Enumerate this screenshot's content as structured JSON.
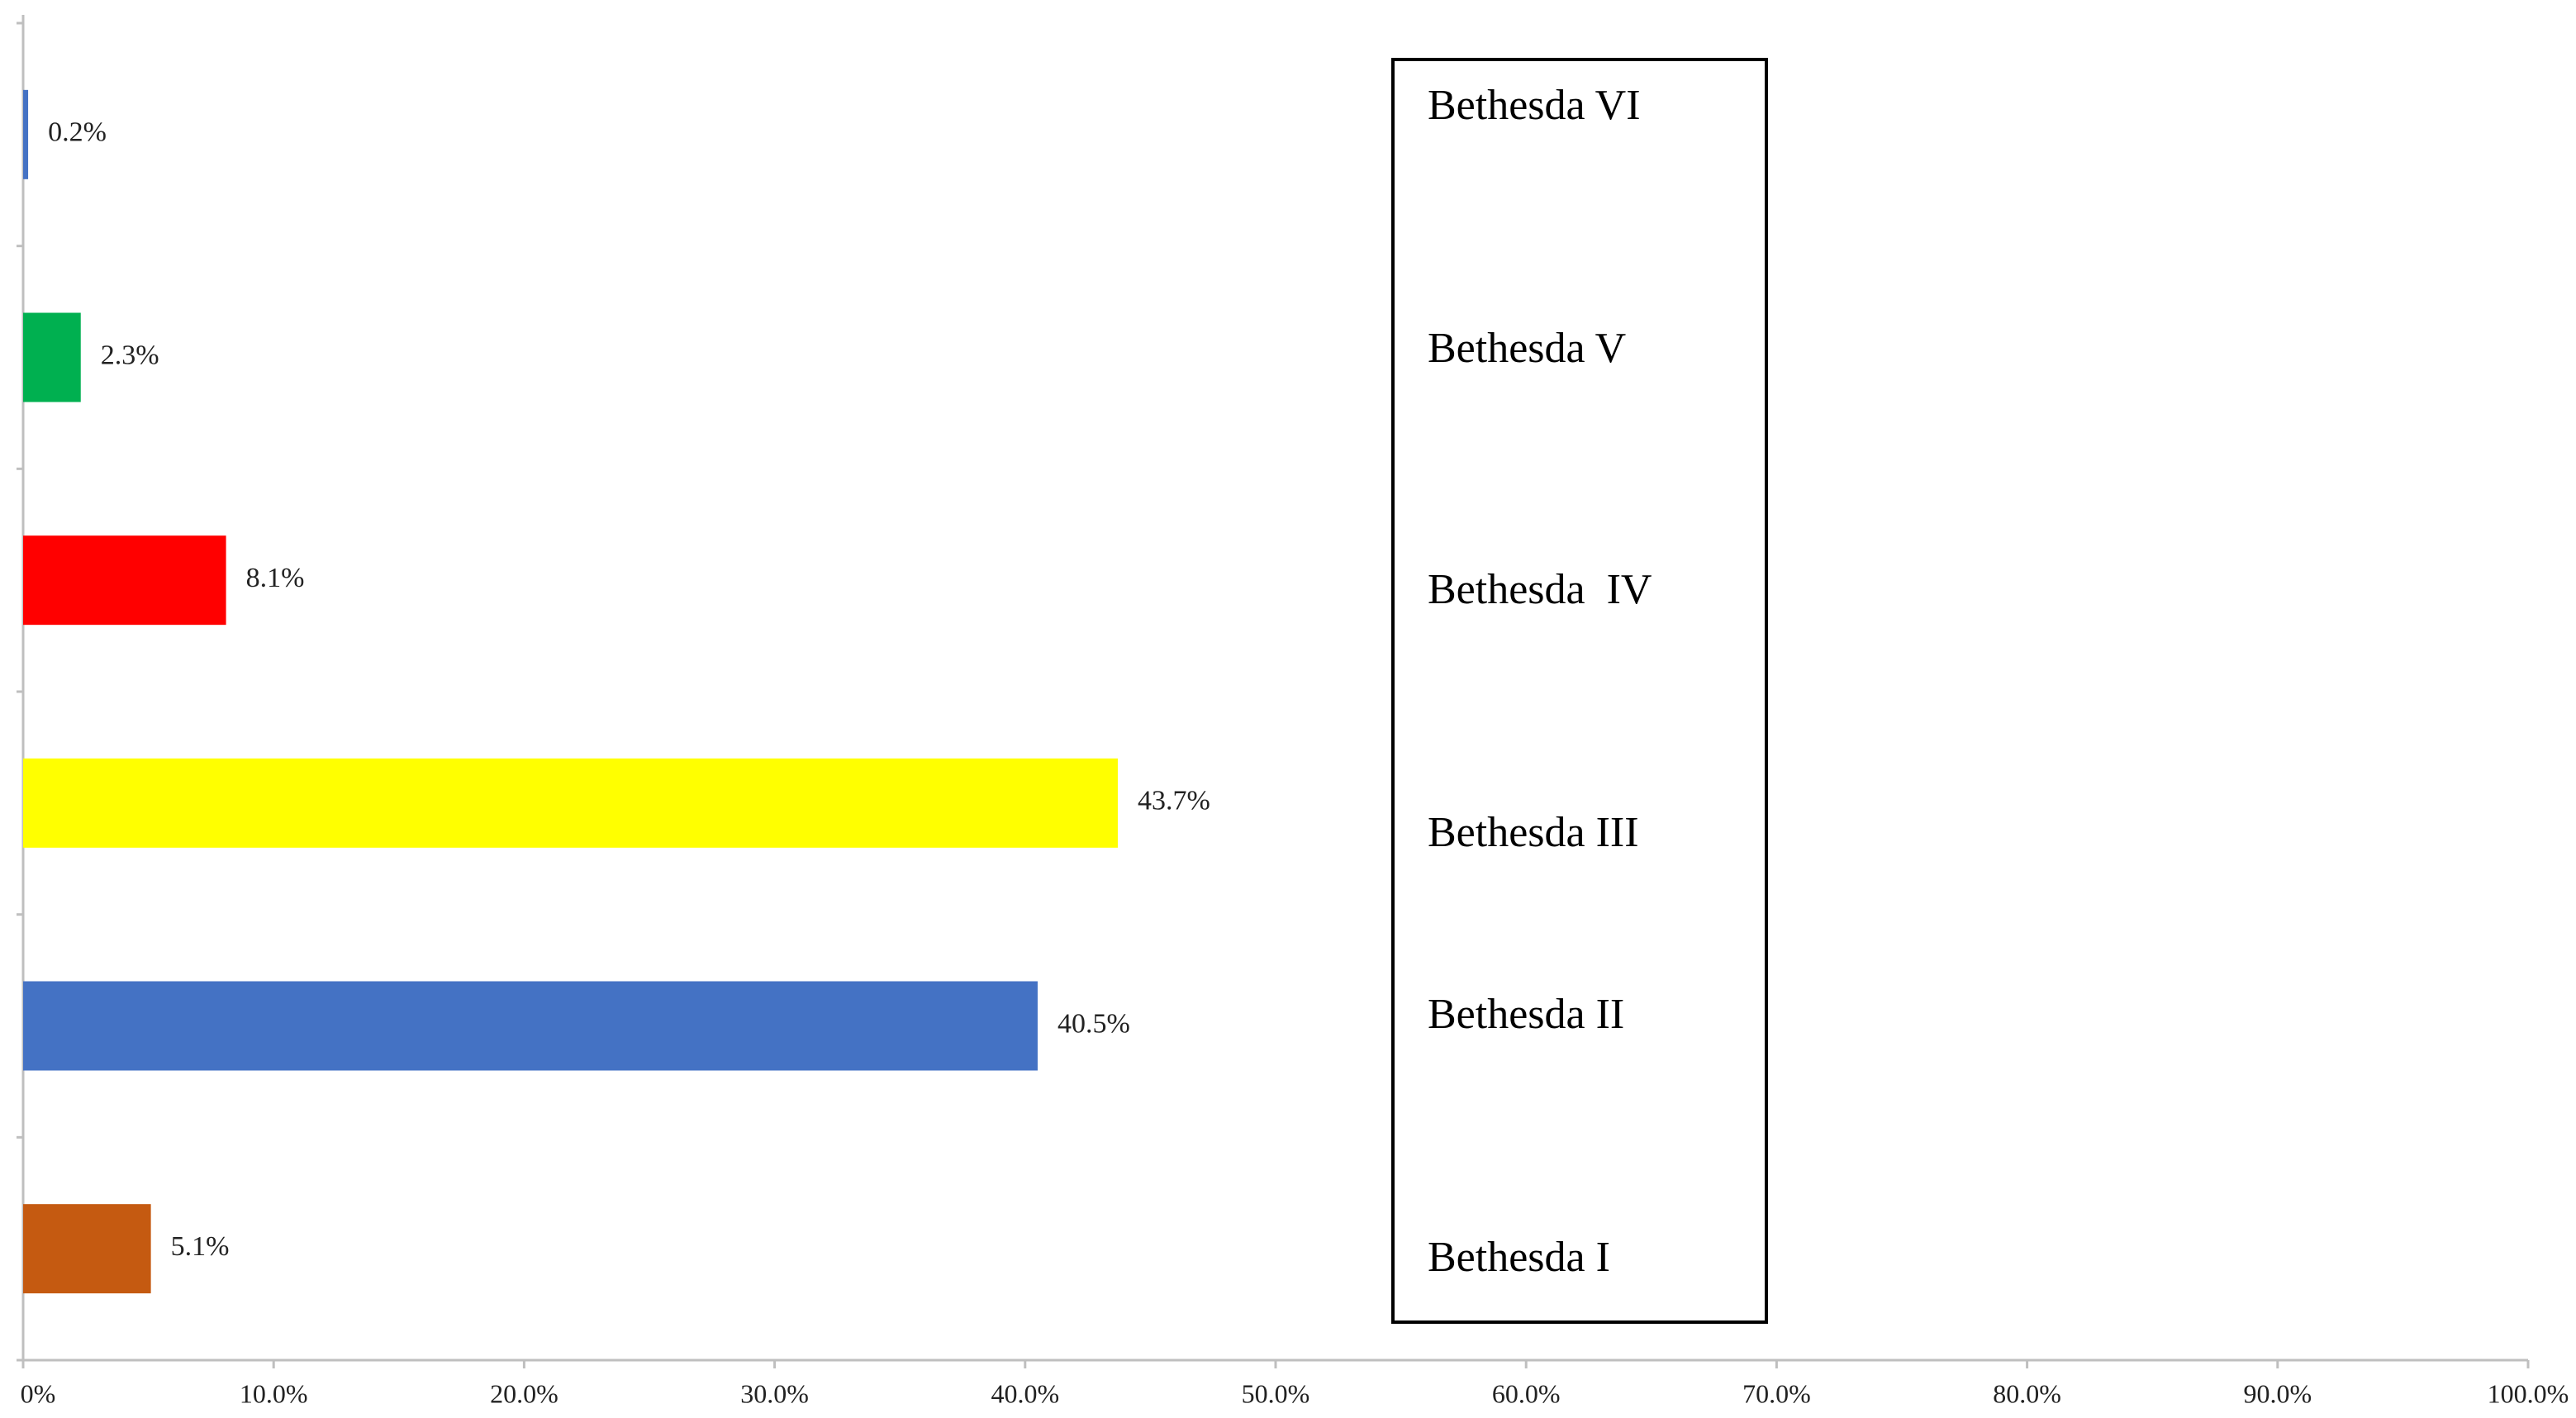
{
  "chart_data": {
    "type": "hbar",
    "categories": [
      "Bethesda I",
      "Bethesda II",
      "Bethesda III",
      "Bethesda  IV",
      "Bethesda V",
      "Bethesda VI"
    ],
    "values": [
      5.1,
      40.5,
      43.7,
      8.1,
      2.3,
      0.2
    ],
    "value_labels": [
      "5.1%",
      "40.5%",
      "43.7%",
      "8.1%",
      "2.3%",
      "0.2%"
    ],
    "colors": [
      "#c55a11",
      "#4472c4",
      "#ffff00",
      "#ff0000",
      "#00b050",
      "#4472c4"
    ],
    "xlim": [
      0,
      100
    ],
    "xticks": [
      {
        "value": 0,
        "label": "0%"
      },
      {
        "value": 10,
        "label": "10.0%"
      },
      {
        "value": 20,
        "label": "20.0%"
      },
      {
        "value": 30,
        "label": "30.0%"
      },
      {
        "value": 40,
        "label": "40.0%"
      },
      {
        "value": 50,
        "label": "50.0%"
      },
      {
        "value": 60,
        "label": "60.0%"
      },
      {
        "value": 70,
        "label": "70.0%"
      },
      {
        "value": 80,
        "label": "80.0%"
      },
      {
        "value": 90,
        "label": "90.0%"
      },
      {
        "value": 100,
        "label": "100.0%"
      }
    ]
  }
}
